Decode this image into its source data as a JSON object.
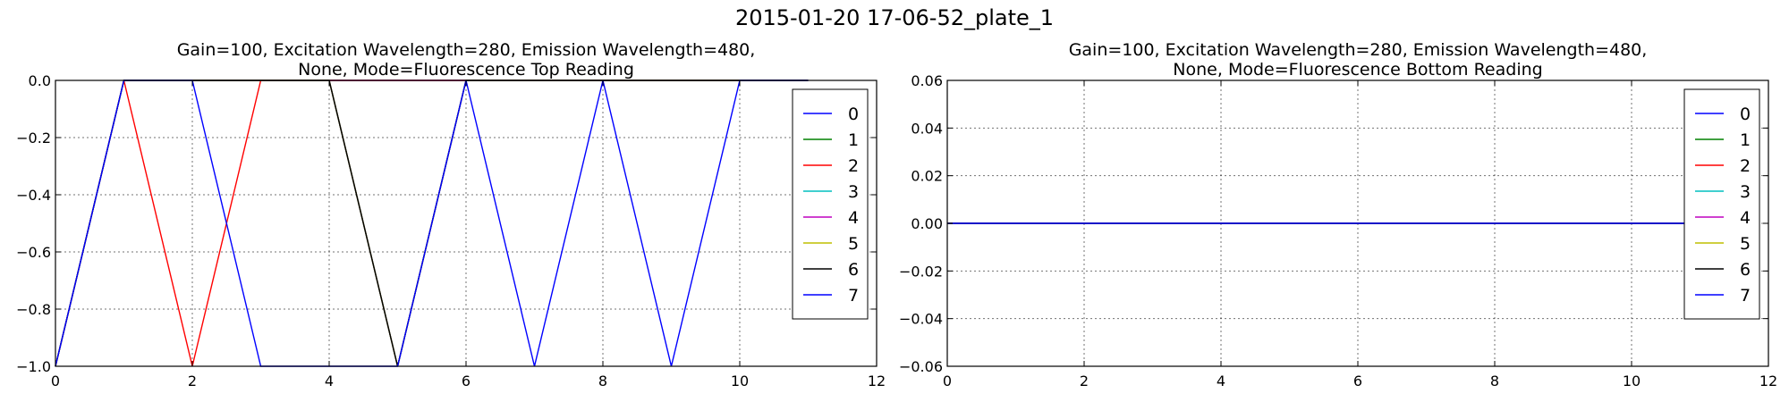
{
  "figure_title": "2015-01-20 17-06-52_plate_1",
  "chart_data": [
    {
      "type": "line",
      "title": "Gain=100, Excitation Wavelength=280, Emission Wavelength=480,\nNone, Mode=Fluorescence Top Reading",
      "title_lines": [
        "Gain=100, Excitation Wavelength=280, Emission Wavelength=480,",
        "None, Mode=Fluorescence Top Reading"
      ],
      "xlabel": "",
      "ylabel": "",
      "xlim": [
        0,
        12
      ],
      "ylim": [
        -1.0,
        0.0
      ],
      "xticks": [
        0,
        2,
        4,
        6,
        8,
        10,
        12
      ],
      "xtick_labels": [
        "0",
        "2",
        "4",
        "6",
        "8",
        "10",
        "12"
      ],
      "yticks": [
        -1.0,
        -0.8,
        -0.6,
        -0.4,
        -0.2,
        0.0
      ],
      "ytick_labels": [
        "−1.0",
        "−0.8",
        "−0.6",
        "−0.4",
        "−0.2",
        "0.0"
      ],
      "grid": true,
      "legend_position": "top-right",
      "x": [
        0,
        1,
        2,
        3,
        4,
        5,
        6,
        7,
        8,
        9,
        10,
        11
      ],
      "series": [
        {
          "name": "0",
          "color": "#0000ff",
          "values": [
            -1,
            0,
            0,
            0,
            0,
            0,
            0,
            0,
            0,
            0,
            0,
            0
          ]
        },
        {
          "name": "1",
          "color": "#008000",
          "values": [
            -1,
            0,
            0,
            0,
            0,
            -1,
            0,
            0,
            0,
            0,
            0,
            0
          ]
        },
        {
          "name": "2",
          "color": "#ff0000",
          "values": [
            -1,
            0,
            -1,
            0,
            0,
            0,
            0,
            0,
            0,
            0,
            0,
            0
          ]
        },
        {
          "name": "3",
          "color": "#00bfbf",
          "values": [
            -1,
            0,
            0,
            0,
            0,
            -1,
            0,
            0,
            0,
            0,
            0,
            0
          ]
        },
        {
          "name": "4",
          "color": "#bf00bf",
          "values": [
            -1,
            0,
            0,
            0,
            0,
            -1,
            0,
            0,
            0,
            0,
            0,
            0
          ]
        },
        {
          "name": "5",
          "color": "#bfbf00",
          "values": [
            -1,
            0,
            0,
            0,
            0,
            -1,
            0,
            0,
            0,
            0,
            0,
            0
          ]
        },
        {
          "name": "6",
          "color": "#000000",
          "values": [
            -1,
            0,
            0,
            0,
            0,
            -1,
            0,
            0,
            0,
            0,
            0,
            0
          ]
        },
        {
          "name": "7",
          "color": "#0000ff",
          "values": [
            -1,
            0,
            0,
            -1,
            -1,
            -1,
            0,
            -1,
            0,
            -1,
            0,
            0
          ]
        }
      ]
    },
    {
      "type": "line",
      "title": "Gain=100, Excitation Wavelength=280, Emission Wavelength=480,\nNone, Mode=Fluorescence Bottom Reading",
      "title_lines": [
        "Gain=100, Excitation Wavelength=280, Emission Wavelength=480,",
        "None, Mode=Fluorescence Bottom Reading"
      ],
      "xlabel": "",
      "ylabel": "",
      "xlim": [
        0,
        12
      ],
      "ylim": [
        -0.06,
        0.06
      ],
      "xticks": [
        0,
        2,
        4,
        6,
        8,
        10,
        12
      ],
      "xtick_labels": [
        "0",
        "2",
        "4",
        "6",
        "8",
        "10",
        "12"
      ],
      "yticks": [
        -0.06,
        -0.04,
        -0.02,
        0.0,
        0.02,
        0.04,
        0.06
      ],
      "ytick_labels": [
        "−0.06",
        "−0.04",
        "−0.02",
        "0.00",
        "0.02",
        "0.04",
        "0.06"
      ],
      "grid": true,
      "legend_position": "top-right",
      "x": [
        0,
        1,
        2,
        3,
        4,
        5,
        6,
        7,
        8,
        9,
        10,
        11
      ],
      "series": [
        {
          "name": "0",
          "color": "#0000ff",
          "values": [
            0,
            0,
            0,
            0,
            0,
            0,
            0,
            0,
            0,
            0,
            0,
            0
          ]
        },
        {
          "name": "1",
          "color": "#008000",
          "values": [
            0,
            0,
            0,
            0,
            0,
            0,
            0,
            0,
            0,
            0,
            0,
            0
          ]
        },
        {
          "name": "2",
          "color": "#ff0000",
          "values": [
            0,
            0,
            0,
            0,
            0,
            0,
            0,
            0,
            0,
            0,
            0,
            0
          ]
        },
        {
          "name": "3",
          "color": "#00bfbf",
          "values": [
            0,
            0,
            0,
            0,
            0,
            0,
            0,
            0,
            0,
            0,
            0,
            0
          ]
        },
        {
          "name": "4",
          "color": "#bf00bf",
          "values": [
            0,
            0,
            0,
            0,
            0,
            0,
            0,
            0,
            0,
            0,
            0,
            0
          ]
        },
        {
          "name": "5",
          "color": "#bfbf00",
          "values": [
            0,
            0,
            0,
            0,
            0,
            0,
            0,
            0,
            0,
            0,
            0,
            0
          ]
        },
        {
          "name": "6",
          "color": "#000000",
          "values": [
            0,
            0,
            0,
            0,
            0,
            0,
            0,
            0,
            0,
            0,
            0,
            0
          ]
        },
        {
          "name": "7",
          "color": "#0000ff",
          "values": [
            0,
            0,
            0,
            0,
            0,
            0,
            0,
            0,
            0,
            0,
            0,
            0
          ]
        }
      ]
    }
  ]
}
